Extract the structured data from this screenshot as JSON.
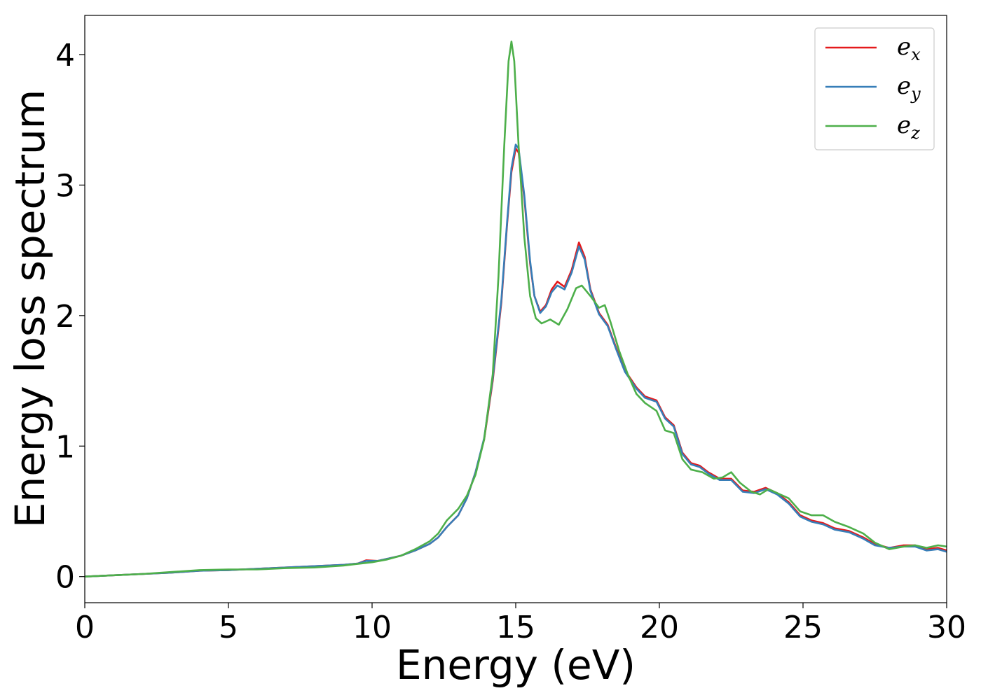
{
  "chart_data": {
    "type": "line",
    "title": "",
    "xlabel": "Energy (eV)",
    "ylabel": "Energy loss spectrum",
    "xlim": [
      0,
      30
    ],
    "ylim": [
      -0.2,
      4.3
    ],
    "xticks": [
      0,
      5,
      10,
      15,
      20,
      25,
      30
    ],
    "yticks": [
      0,
      1,
      2,
      3,
      4
    ],
    "grid": false,
    "legend_position": "top-right",
    "series": [
      {
        "name": "e_x",
        "label_base": "e",
        "label_sub": "x",
        "color": "#e41a1c",
        "points": [
          [
            0,
            0
          ],
          [
            1,
            0.01
          ],
          [
            2,
            0.02
          ],
          [
            3,
            0.03
          ],
          [
            4,
            0.045
          ],
          [
            5,
            0.05
          ],
          [
            6,
            0.06
          ],
          [
            7,
            0.07
          ],
          [
            8,
            0.08
          ],
          [
            9,
            0.09
          ],
          [
            9.5,
            0.1
          ],
          [
            9.8,
            0.125
          ],
          [
            10.2,
            0.12
          ],
          [
            10.6,
            0.14
          ],
          [
            11,
            0.16
          ],
          [
            11.5,
            0.2
          ],
          [
            12,
            0.25
          ],
          [
            12.3,
            0.3
          ],
          [
            12.6,
            0.38
          ],
          [
            13,
            0.47
          ],
          [
            13.3,
            0.6
          ],
          [
            13.6,
            0.8
          ],
          [
            13.9,
            1.05
          ],
          [
            14.2,
            1.5
          ],
          [
            14.5,
            2.1
          ],
          [
            14.7,
            2.7
          ],
          [
            14.85,
            3.1
          ],
          [
            15,
            3.28
          ],
          [
            15.1,
            3.25
          ],
          [
            15.3,
            2.9
          ],
          [
            15.5,
            2.4
          ],
          [
            15.65,
            2.15
          ],
          [
            15.85,
            2.03
          ],
          [
            16.05,
            2.08
          ],
          [
            16.25,
            2.2
          ],
          [
            16.45,
            2.26
          ],
          [
            16.7,
            2.22
          ],
          [
            16.95,
            2.35
          ],
          [
            17.2,
            2.56
          ],
          [
            17.4,
            2.45
          ],
          [
            17.6,
            2.2
          ],
          [
            17.9,
            2.02
          ],
          [
            18.2,
            1.93
          ],
          [
            18.5,
            1.75
          ],
          [
            18.8,
            1.58
          ],
          [
            19.2,
            1.45
          ],
          [
            19.5,
            1.38
          ],
          [
            19.9,
            1.35
          ],
          [
            20.2,
            1.22
          ],
          [
            20.5,
            1.16
          ],
          [
            20.8,
            0.95
          ],
          [
            21.1,
            0.87
          ],
          [
            21.4,
            0.85
          ],
          [
            21.7,
            0.8
          ],
          [
            22.1,
            0.75
          ],
          [
            22.5,
            0.75
          ],
          [
            22.9,
            0.66
          ],
          [
            23.3,
            0.65
          ],
          [
            23.7,
            0.68
          ],
          [
            24.1,
            0.64
          ],
          [
            24.5,
            0.57
          ],
          [
            24.9,
            0.47
          ],
          [
            25.3,
            0.43
          ],
          [
            25.7,
            0.41
          ],
          [
            26.1,
            0.37
          ],
          [
            26.6,
            0.35
          ],
          [
            27.1,
            0.3
          ],
          [
            27.5,
            0.25
          ],
          [
            28,
            0.22
          ],
          [
            28.5,
            0.24
          ],
          [
            28.9,
            0.24
          ],
          [
            29.3,
            0.21
          ],
          [
            29.7,
            0.22
          ],
          [
            30,
            0.2
          ]
        ]
      },
      {
        "name": "e_y",
        "label_base": "e",
        "label_sub": "y",
        "color": "#377eb8",
        "points": [
          [
            0,
            0
          ],
          [
            1,
            0.01
          ],
          [
            2,
            0.02
          ],
          [
            3,
            0.03
          ],
          [
            4,
            0.045
          ],
          [
            5,
            0.05
          ],
          [
            6,
            0.06
          ],
          [
            7,
            0.07
          ],
          [
            8,
            0.08
          ],
          [
            9,
            0.09
          ],
          [
            9.5,
            0.1
          ],
          [
            9.8,
            0.12
          ],
          [
            10.2,
            0.12
          ],
          [
            10.6,
            0.14
          ],
          [
            11,
            0.16
          ],
          [
            11.5,
            0.2
          ],
          [
            12,
            0.25
          ],
          [
            12.3,
            0.3
          ],
          [
            12.6,
            0.38
          ],
          [
            13,
            0.47
          ],
          [
            13.3,
            0.6
          ],
          [
            13.6,
            0.8
          ],
          [
            13.9,
            1.06
          ],
          [
            14.2,
            1.52
          ],
          [
            14.5,
            2.12
          ],
          [
            14.7,
            2.72
          ],
          [
            14.85,
            3.13
          ],
          [
            15,
            3.31
          ],
          [
            15.1,
            3.28
          ],
          [
            15.3,
            2.92
          ],
          [
            15.5,
            2.42
          ],
          [
            15.65,
            2.15
          ],
          [
            15.85,
            2.02
          ],
          [
            16.05,
            2.07
          ],
          [
            16.25,
            2.18
          ],
          [
            16.45,
            2.23
          ],
          [
            16.7,
            2.2
          ],
          [
            16.95,
            2.33
          ],
          [
            17.2,
            2.53
          ],
          [
            17.4,
            2.43
          ],
          [
            17.6,
            2.19
          ],
          [
            17.9,
            2.01
          ],
          [
            18.2,
            1.92
          ],
          [
            18.5,
            1.74
          ],
          [
            18.8,
            1.57
          ],
          [
            19.2,
            1.44
          ],
          [
            19.5,
            1.37
          ],
          [
            19.9,
            1.34
          ],
          [
            20.2,
            1.21
          ],
          [
            20.5,
            1.15
          ],
          [
            20.8,
            0.94
          ],
          [
            21.1,
            0.86
          ],
          [
            21.4,
            0.84
          ],
          [
            21.7,
            0.79
          ],
          [
            22.1,
            0.74
          ],
          [
            22.5,
            0.74
          ],
          [
            22.9,
            0.65
          ],
          [
            23.3,
            0.64
          ],
          [
            23.7,
            0.67
          ],
          [
            24.1,
            0.63
          ],
          [
            24.5,
            0.56
          ],
          [
            24.9,
            0.46
          ],
          [
            25.3,
            0.42
          ],
          [
            25.7,
            0.4
          ],
          [
            26.1,
            0.36
          ],
          [
            26.6,
            0.34
          ],
          [
            27.1,
            0.29
          ],
          [
            27.5,
            0.24
          ],
          [
            28,
            0.22
          ],
          [
            28.5,
            0.23
          ],
          [
            28.9,
            0.23
          ],
          [
            29.3,
            0.2
          ],
          [
            29.7,
            0.21
          ],
          [
            30,
            0.19
          ]
        ]
      },
      {
        "name": "e_z",
        "label_base": "e",
        "label_sub": "z",
        "color": "#4daf4a",
        "points": [
          [
            0,
            0
          ],
          [
            1,
            0.01
          ],
          [
            2,
            0.02
          ],
          [
            3,
            0.035
          ],
          [
            4,
            0.05
          ],
          [
            5,
            0.055
          ],
          [
            6,
            0.055
          ],
          [
            7,
            0.065
          ],
          [
            8,
            0.07
          ],
          [
            9,
            0.085
          ],
          [
            10,
            0.11
          ],
          [
            10.5,
            0.13
          ],
          [
            11,
            0.16
          ],
          [
            11.5,
            0.21
          ],
          [
            12,
            0.27
          ],
          [
            12.3,
            0.33
          ],
          [
            12.6,
            0.43
          ],
          [
            13,
            0.52
          ],
          [
            13.3,
            0.62
          ],
          [
            13.6,
            0.78
          ],
          [
            13.9,
            1.05
          ],
          [
            14.2,
            1.55
          ],
          [
            14.4,
            2.3
          ],
          [
            14.6,
            3.3
          ],
          [
            14.75,
            3.95
          ],
          [
            14.85,
            4.1
          ],
          [
            14.95,
            3.95
          ],
          [
            15.1,
            3.3
          ],
          [
            15.3,
            2.6
          ],
          [
            15.5,
            2.15
          ],
          [
            15.7,
            1.98
          ],
          [
            15.9,
            1.94
          ],
          [
            16.2,
            1.97
          ],
          [
            16.5,
            1.93
          ],
          [
            16.8,
            2.05
          ],
          [
            17.1,
            2.21
          ],
          [
            17.3,
            2.23
          ],
          [
            17.6,
            2.15
          ],
          [
            17.9,
            2.06
          ],
          [
            18.1,
            2.08
          ],
          [
            18.3,
            1.95
          ],
          [
            18.6,
            1.73
          ],
          [
            18.9,
            1.55
          ],
          [
            19.2,
            1.4
          ],
          [
            19.5,
            1.33
          ],
          [
            19.9,
            1.27
          ],
          [
            20.2,
            1.12
          ],
          [
            20.5,
            1.1
          ],
          [
            20.8,
            0.9
          ],
          [
            21.1,
            0.82
          ],
          [
            21.5,
            0.8
          ],
          [
            21.9,
            0.75
          ],
          [
            22.2,
            0.76
          ],
          [
            22.5,
            0.8
          ],
          [
            22.8,
            0.72
          ],
          [
            23.2,
            0.65
          ],
          [
            23.5,
            0.63
          ],
          [
            23.8,
            0.67
          ],
          [
            24.2,
            0.63
          ],
          [
            24.5,
            0.6
          ],
          [
            24.9,
            0.5
          ],
          [
            25.3,
            0.47
          ],
          [
            25.7,
            0.47
          ],
          [
            26.1,
            0.42
          ],
          [
            26.6,
            0.38
          ],
          [
            27.1,
            0.33
          ],
          [
            27.5,
            0.26
          ],
          [
            28,
            0.21
          ],
          [
            28.5,
            0.23
          ],
          [
            28.9,
            0.24
          ],
          [
            29.3,
            0.22
          ],
          [
            29.7,
            0.24
          ],
          [
            30,
            0.23
          ]
        ]
      }
    ]
  }
}
